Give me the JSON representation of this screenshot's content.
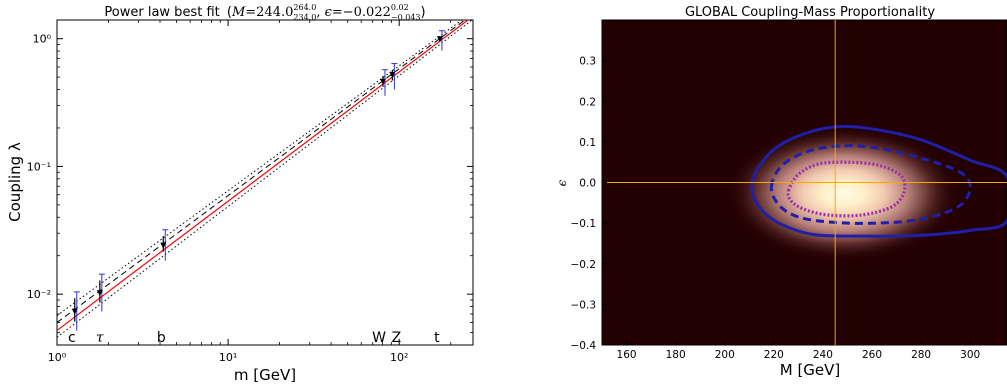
{
  "chart_data": [
    {
      "type": "line",
      "title": "Power law best fit",
      "title_math": {
        "M_label": "M",
        "M_value": "244.0",
        "M_upper": "264.0",
        "M_lower": "234.0",
        "eps_label": "ϵ",
        "eps_value": "−0.022",
        "eps_upper": "0.02",
        "eps_lower": "−0.043"
      },
      "xlabel": "m [GeV]",
      "ylabel": "Coupling λ",
      "xscale": "log",
      "yscale": "log",
      "xlim": [
        1,
        270
      ],
      "ylim": [
        0.004,
        1.4
      ],
      "x_tick_labels": [
        "10⁰",
        "10¹",
        "10²"
      ],
      "y_tick_labels": [
        "10⁻²",
        "10⁻¹",
        "10⁰"
      ],
      "particle_labels": [
        "c",
        "τ",
        "b",
        "W",
        "Z",
        "t"
      ],
      "points": [
        {
          "name": "c",
          "x": 1.27,
          "y": 0.0073,
          "yerr_low": 0.0061,
          "yerr_high": 0.0093
        },
        {
          "name": "tau",
          "x": 1.78,
          "y": 0.0102,
          "yerr_low": 0.0086,
          "yerr_high": 0.0128
        },
        {
          "name": "b",
          "x": 4.18,
          "y": 0.024,
          "yerr_low": 0.0215,
          "yerr_high": 0.0285
        },
        {
          "name": "W",
          "x": 80.4,
          "y": 0.46,
          "yerr_low": 0.42,
          "yerr_high": 0.51
        },
        {
          "name": "Z",
          "x": 91.2,
          "y": 0.52,
          "yerr_low": 0.47,
          "yerr_high": 0.57
        },
        {
          "name": "t",
          "x": 173.0,
          "y": 0.99,
          "yerr_low": 0.95,
          "yerr_high": 1.03
        }
      ],
      "series": [
        {
          "style": "solid",
          "color": "#ff0000",
          "x": [
            1,
            270
          ],
          "y": [
            0.0052,
            1.5
          ]
        },
        {
          "style": "dashed",
          "color": "#000000",
          "x": [
            1,
            270
          ],
          "y": [
            0.006,
            1.56
          ]
        },
        {
          "style": "dotted",
          "color": "#000000",
          "x": [
            1,
            270
          ],
          "y": [
            0.0068,
            1.62
          ]
        },
        {
          "style": "dotted",
          "color": "#000000",
          "x": [
            1,
            270
          ],
          "y": [
            0.0046,
            1.42
          ]
        }
      ],
      "grid": false
    },
    {
      "type": "heatmap",
      "title": "GLOBAL Coupling-Mass Proportionality",
      "xlabel": "M [GeV]",
      "ylabel": "ϵ",
      "xlim": [
        150,
        315
      ],
      "ylim": [
        -0.4,
        0.4
      ],
      "xticks": [
        160,
        180,
        200,
        220,
        240,
        260,
        280,
        300
      ],
      "yticks": [
        -0.4,
        -0.3,
        -0.2,
        -0.1,
        0.0,
        0.1,
        0.2,
        0.3
      ],
      "ytick_labels": [
        "−0.4",
        "−0.3",
        "−0.2",
        "−0.1",
        "0.0",
        "0.1",
        "0.2",
        "0.3"
      ],
      "best_fit": {
        "M": 245,
        "epsilon": -0.02
      },
      "colors": {
        "background": "#230002",
        "crosshair": "#ffa500",
        "contours": "#1f1fa8",
        "inner_contour": "#9b2fa8"
      },
      "contours": [
        {
          "level": "outer",
          "style": "solid",
          "color": "#1f1fa8",
          "points": [
            [
              211,
              -0.01
            ],
            [
              214,
              0.04
            ],
            [
              222,
              0.09
            ],
            [
              235,
              0.125
            ],
            [
              248,
              0.138
            ],
            [
              262,
              0.13
            ],
            [
              280,
              0.105
            ],
            [
              300,
              0.055
            ],
            [
              315,
              0.015
            ],
            [
              315,
              -0.095
            ],
            [
              300,
              -0.118
            ],
            [
              280,
              -0.13
            ],
            [
              258,
              -0.132
            ],
            [
              236,
              -0.128
            ],
            [
              222,
              -0.1
            ],
            [
              214,
              -0.06
            ]
          ]
        },
        {
          "level": "middle",
          "style": "dashed",
          "color": "#1f1fa8",
          "points": [
            [
              219,
              -0.01
            ],
            [
              223,
              0.04
            ],
            [
              233,
              0.075
            ],
            [
              247,
              0.09
            ],
            [
              262,
              0.085
            ],
            [
              280,
              0.06
            ],
            [
              296,
              0.025
            ],
            [
              300,
              -0.015
            ],
            [
              295,
              -0.06
            ],
            [
              280,
              -0.09
            ],
            [
              262,
              -0.1
            ],
            [
              244,
              -0.098
            ],
            [
              230,
              -0.085
            ],
            [
              222,
              -0.055
            ]
          ]
        },
        {
          "level": "inner",
          "style": "dotted",
          "color": "#9b2fa8",
          "points": [
            [
              226,
              -0.02
            ],
            [
              230,
              0.02
            ],
            [
              238,
              0.045
            ],
            [
              250,
              0.05
            ],
            [
              263,
              0.042
            ],
            [
              272,
              0.015
            ],
            [
              273,
              -0.025
            ],
            [
              268,
              -0.06
            ],
            [
              256,
              -0.08
            ],
            [
              242,
              -0.08
            ],
            [
              232,
              -0.065
            ],
            [
              227,
              -0.045
            ]
          ]
        }
      ]
    }
  ]
}
